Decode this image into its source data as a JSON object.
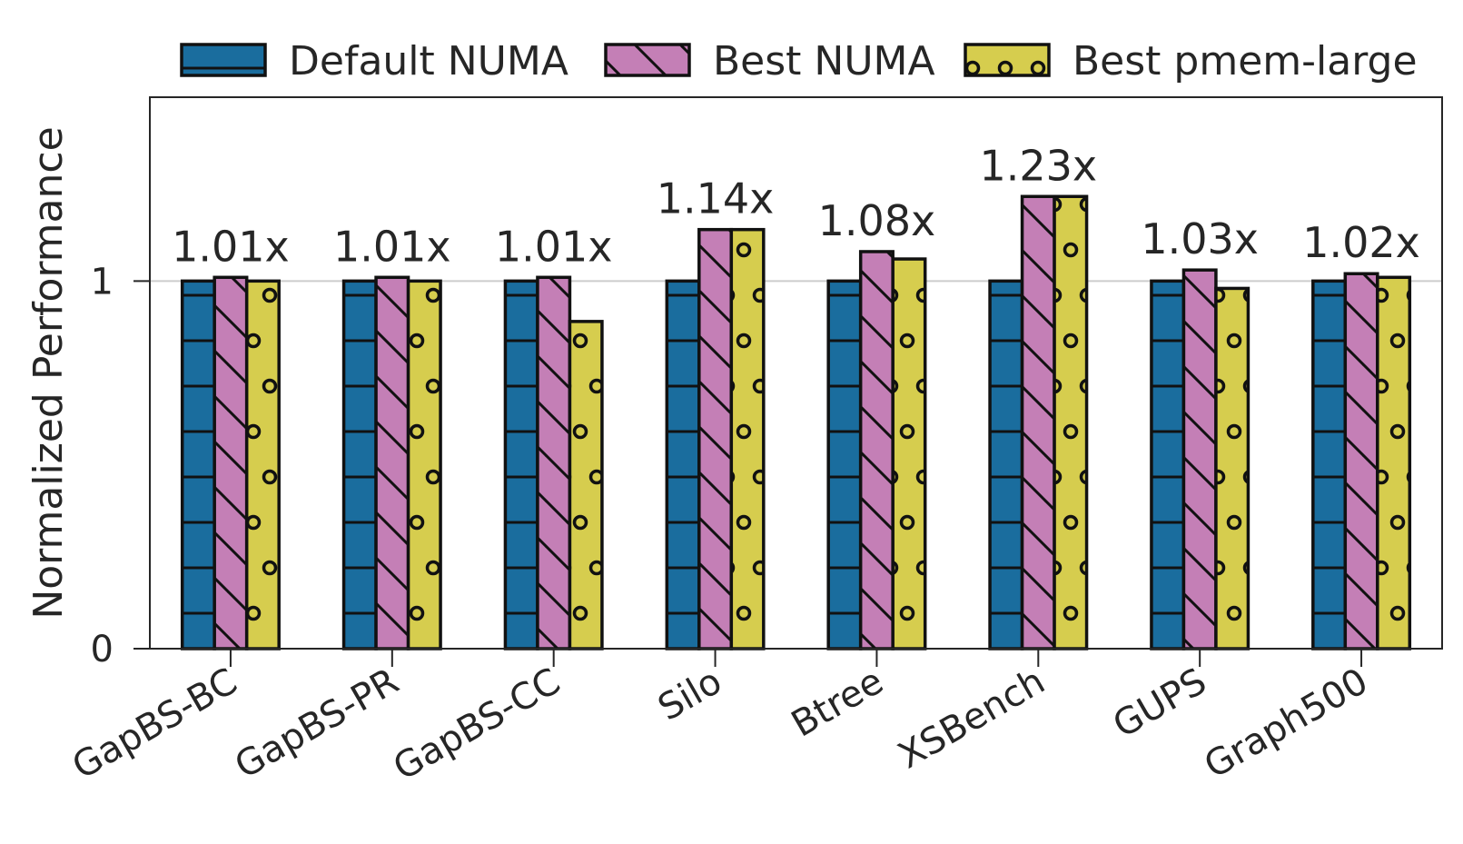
{
  "chart_data": {
    "type": "bar",
    "ylabel": "Normalized Performance",
    "xlabel": "",
    "categories": [
      "GapBS-BC",
      "GapBS-PR",
      "GapBS-CC",
      "Silo",
      "Btree",
      "XSBench",
      "GUPS",
      "Graph500"
    ],
    "series": [
      {
        "name": "Default NUMA",
        "values": [
          1.0,
          1.0,
          1.0,
          1.0,
          1.0,
          1.0,
          1.0,
          1.0
        ],
        "color": "#1a6d9e",
        "pattern": "horizontal-lines"
      },
      {
        "name": "Best NUMA",
        "values": [
          1.01,
          1.01,
          1.01,
          1.14,
          1.08,
          1.23,
          1.03,
          1.02
        ],
        "color": "#c47fb6",
        "pattern": "diagonal-lines"
      },
      {
        "name": "Best pmem-large",
        "values": [
          1.0,
          1.0,
          0.89,
          1.14,
          1.06,
          1.23,
          0.98,
          1.01
        ],
        "color": "#d6cd4e",
        "pattern": "circles"
      }
    ],
    "annotations": [
      "1.01x",
      "1.01x",
      "1.01x",
      "1.14x",
      "1.08x",
      "1.23x",
      "1.03x",
      "1.02x"
    ],
    "ylim": [
      0,
      1.5
    ],
    "yticks": [
      0,
      1
    ],
    "ytick_labels": [
      "0",
      "1"
    ],
    "grid": "horizontal-at-1",
    "legend_position": "top"
  }
}
